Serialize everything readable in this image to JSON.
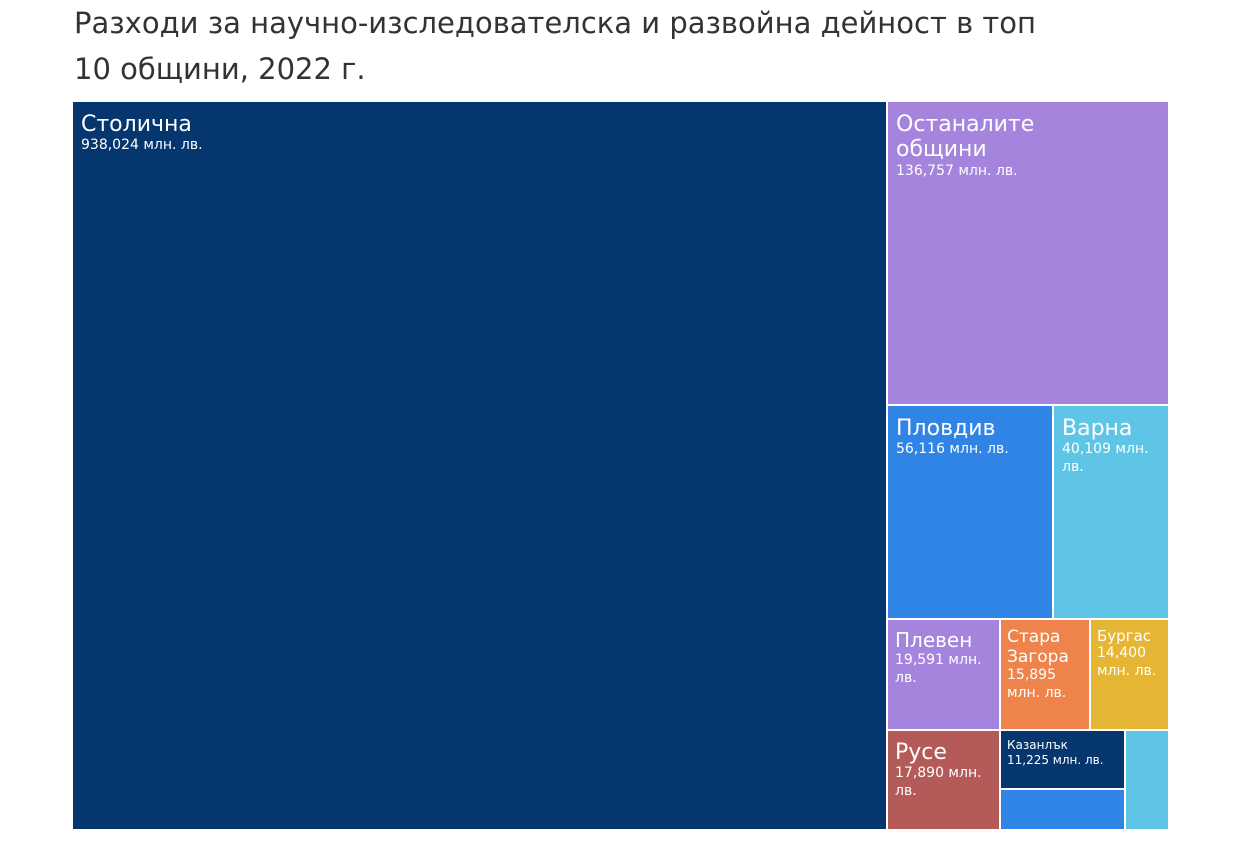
{
  "chart_data": {
    "type": "treemap",
    "title": "Разходи за научно-изследователска и развойна дейност в топ 10 общини, 2022 г.",
    "unit": "млн. лв.",
    "items": [
      {
        "name": "Столична",
        "value": 938.024,
        "value_label": "938,024 млн. лв.",
        "color": "#06366E"
      },
      {
        "name": "Останалите общини",
        "value": 136.757,
        "value_label": "136,757 млн. лв.",
        "color": "#A484DD"
      },
      {
        "name": "Пловдив",
        "value": 56.116,
        "value_label": "56,116 млн. лв.",
        "color": "#3084E6"
      },
      {
        "name": "Варна",
        "value": 40.109,
        "value_label": "40,109 млн. лв.",
        "color": "#5EC5E7"
      },
      {
        "name": "Плевен",
        "value": 19.591,
        "value_label": "19,591 млн. лв.",
        "color": "#A484DD"
      },
      {
        "name": "Стара Загора",
        "value": 15.895,
        "value_label": "15,895 млн. лв.",
        "color": "#EE844C"
      },
      {
        "name": "Бургас",
        "value": 14.4,
        "value_label": "14,400 млн. лв.",
        "color": "#E5B634"
      },
      {
        "name": "Русе",
        "value": 17.89,
        "value_label": "17,890 млн. лв.",
        "color": "#B45A58"
      },
      {
        "name": "Казанлък",
        "value": 11.225,
        "value_label": "11,225 млн. лв.",
        "color": "#06366E"
      },
      {
        "name": "",
        "value": null,
        "value_label": "",
        "color": "#3084E6"
      },
      {
        "name": "",
        "value": null,
        "value_label": "",
        "color": "#5EC5E7"
      }
    ]
  }
}
